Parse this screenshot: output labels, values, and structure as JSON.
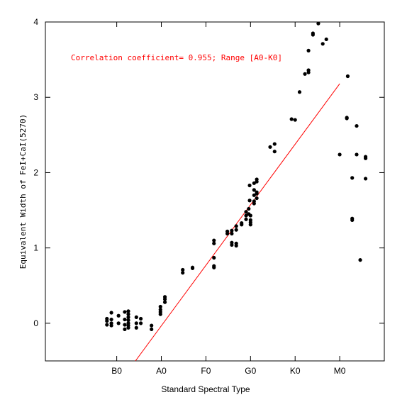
{
  "chart_data": {
    "type": "scatter",
    "xlabel": "Standard Spectral Type",
    "ylabel": "Equivalent Width of FeI+CaI(5270)",
    "annotation": "Correlation coefficient= 0.955; Range [A0-K0]",
    "xlim": [
      -8,
      30
    ],
    "ylim": [
      -0.5,
      4.0
    ],
    "x_ticks": [
      {
        "value": 0,
        "label": "B0"
      },
      {
        "value": 5,
        "label": "A0"
      },
      {
        "value": 10,
        "label": "F0"
      },
      {
        "value": 15,
        "label": "G0"
      },
      {
        "value": 20,
        "label": "K0"
      },
      {
        "value": 25,
        "label": "M0"
      }
    ],
    "y_ticks": [
      {
        "value": 0,
        "label": "0"
      },
      {
        "value": 1,
        "label": "1"
      },
      {
        "value": 2,
        "label": "2"
      },
      {
        "value": 3,
        "label": "3"
      },
      {
        "value": 4,
        "label": "4"
      }
    ],
    "grid": false,
    "colors": {
      "points": "#000000",
      "fit_line": "#ff0000",
      "annotation": "#ff0000",
      "axes": "#000000"
    },
    "fit_line": {
      "x": [
        2.1,
        25.0
      ],
      "y": [
        -0.5,
        3.18
      ]
    },
    "points": [
      [
        -1.1,
        0.06
      ],
      [
        -1.1,
        0.03
      ],
      [
        -1.1,
        -0.02
      ],
      [
        -0.6,
        0.14
      ],
      [
        -0.6,
        0.05
      ],
      [
        -0.6,
        0.0
      ],
      [
        -0.6,
        -0.03
      ],
      [
        0.2,
        0.1
      ],
      [
        0.2,
        0.0
      ],
      [
        0.9,
        0.15
      ],
      [
        0.9,
        0.05
      ],
      [
        0.9,
        -0.02
      ],
      [
        0.9,
        -0.08
      ],
      [
        1.3,
        0.16
      ],
      [
        1.3,
        0.12
      ],
      [
        1.3,
        0.08
      ],
      [
        1.3,
        0.04
      ],
      [
        1.3,
        0.0
      ],
      [
        1.3,
        -0.03
      ],
      [
        1.3,
        -0.06
      ],
      [
        2.2,
        0.08
      ],
      [
        2.2,
        0.0
      ],
      [
        2.2,
        -0.06
      ],
      [
        2.7,
        0.06
      ],
      [
        2.7,
        0.0
      ],
      [
        3.9,
        -0.03
      ],
      [
        3.9,
        -0.08
      ],
      [
        4.9,
        0.22
      ],
      [
        4.9,
        0.18
      ],
      [
        4.9,
        0.15
      ],
      [
        4.9,
        0.12
      ],
      [
        5.4,
        0.35
      ],
      [
        5.4,
        0.32
      ],
      [
        5.4,
        0.28
      ],
      [
        7.4,
        0.71
      ],
      [
        7.4,
        0.67
      ],
      [
        8.5,
        0.74
      ],
      [
        8.5,
        0.73
      ],
      [
        10.9,
        1.1
      ],
      [
        10.9,
        1.06
      ],
      [
        10.9,
        0.87
      ],
      [
        10.9,
        0.76
      ],
      [
        10.9,
        0.74
      ],
      [
        12.4,
        1.22
      ],
      [
        12.4,
        1.19
      ],
      [
        12.9,
        1.23
      ],
      [
        12.9,
        1.19
      ],
      [
        12.9,
        1.07
      ],
      [
        12.9,
        1.04
      ],
      [
        13.4,
        1.29
      ],
      [
        13.4,
        1.24
      ],
      [
        13.4,
        1.06
      ],
      [
        13.4,
        1.03
      ],
      [
        14.0,
        1.33
      ],
      [
        14.0,
        1.31
      ],
      [
        14.5,
        1.48
      ],
      [
        14.5,
        1.43
      ],
      [
        14.5,
        1.38
      ],
      [
        14.8,
        1.52
      ],
      [
        14.8,
        1.45
      ],
      [
        14.9,
        1.83
      ],
      [
        14.9,
        1.63
      ],
      [
        15.0,
        1.43
      ],
      [
        15.0,
        1.37
      ],
      [
        15.0,
        1.34
      ],
      [
        15.0,
        1.31
      ],
      [
        15.4,
        1.86
      ],
      [
        15.4,
        1.77
      ],
      [
        15.4,
        1.7
      ],
      [
        15.4,
        1.62
      ],
      [
        15.4,
        1.59
      ],
      [
        15.7,
        1.91
      ],
      [
        15.7,
        1.88
      ],
      [
        15.7,
        1.74
      ],
      [
        15.7,
        1.72
      ],
      [
        15.7,
        1.66
      ],
      [
        17.2,
        2.34
      ],
      [
        17.7,
        2.38
      ],
      [
        17.7,
        2.28
      ],
      [
        19.6,
        2.71
      ],
      [
        20.0,
        2.7
      ],
      [
        20.5,
        3.07
      ],
      [
        21.1,
        3.31
      ],
      [
        21.5,
        3.62
      ],
      [
        21.5,
        3.36
      ],
      [
        21.5,
        3.33
      ],
      [
        22.0,
        3.85
      ],
      [
        22.0,
        3.83
      ],
      [
        22.6,
        3.98
      ],
      [
        23.1,
        3.71
      ],
      [
        23.5,
        3.77
      ],
      [
        25.0,
        2.24
      ],
      [
        25.8,
        2.73
      ],
      [
        25.8,
        2.72
      ],
      [
        25.9,
        3.28
      ],
      [
        26.4,
        1.93
      ],
      [
        26.4,
        1.39
      ],
      [
        26.4,
        1.37
      ],
      [
        26.9,
        2.62
      ],
      [
        26.9,
        2.24
      ],
      [
        27.3,
        0.84
      ],
      [
        27.9,
        2.21
      ],
      [
        27.9,
        2.19
      ],
      [
        27.9,
        1.92
      ]
    ]
  }
}
